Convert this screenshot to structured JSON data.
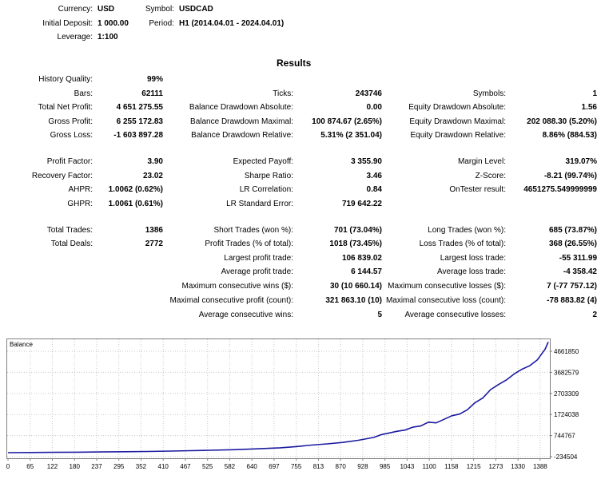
{
  "header": {
    "currency_label": "Currency:",
    "currency_value": "USD",
    "deposit_label": "Initial Deposit:",
    "deposit_value": "1 000.00",
    "leverage_label": "Leverage:",
    "leverage_value": "1:100",
    "symbol_label": "Symbol:",
    "symbol_value": "USDCAD",
    "period_label": "Period:",
    "period_value": "H1 (2014.04.01 - 2024.04.01)"
  },
  "results_title": "Results",
  "col1": {
    "history_quality_label": "History Quality:",
    "history_quality_value": "99%",
    "bars_label": "Bars:",
    "bars_value": "62111",
    "total_net_profit_label": "Total Net Profit:",
    "total_net_profit_value": "4 651 275.55",
    "gross_profit_label": "Gross Profit:",
    "gross_profit_value": "6 255 172.83",
    "gross_loss_label": "Gross Loss:",
    "gross_loss_value": "-1 603 897.28",
    "profit_factor_label": "Profit Factor:",
    "profit_factor_value": "3.90",
    "recovery_factor_label": "Recovery Factor:",
    "recovery_factor_value": "23.02",
    "ahpr_label": "AHPR:",
    "ahpr_value": "1.0062 (0.62%)",
    "ghpr_label": "GHPR:",
    "ghpr_value": "1.0061 (0.61%)",
    "total_trades_label": "Total Trades:",
    "total_trades_value": "1386",
    "total_deals_label": "Total Deals:",
    "total_deals_value": "2772"
  },
  "col2": {
    "ticks_label": "Ticks:",
    "ticks_value": "243746",
    "balance_dd_abs_label": "Balance Drawdown Absolute:",
    "balance_dd_abs_value": "0.00",
    "balance_dd_max_label": "Balance Drawdown Maximal:",
    "balance_dd_max_value": "100 874.67 (2.65%)",
    "balance_dd_rel_label": "Balance Drawdown Relative:",
    "balance_dd_rel_value": "5.31% (2 351.04)",
    "expected_payoff_label": "Expected Payoff:",
    "expected_payoff_value": "3 355.90",
    "sharpe_label": "Sharpe Ratio:",
    "sharpe_value": "3.46",
    "lr_corr_label": "LR Correlation:",
    "lr_corr_value": "0.84",
    "lr_err_label": "LR Standard Error:",
    "lr_err_value": "719 642.22",
    "short_trades_label": "Short Trades (won %):",
    "short_trades_value": "701 (73.04%)",
    "profit_trades_label": "Profit Trades (% of total):",
    "profit_trades_value": "1018 (73.45%)",
    "largest_profit_label": "Largest profit trade:",
    "largest_profit_value": "106 839.02",
    "avg_profit_label": "Average profit trade:",
    "avg_profit_value": "6 144.57",
    "max_consec_wins_label": "Maximum consecutive wins ($):",
    "max_consec_wins_value": "30 (10 660.14)",
    "maximal_consec_profit_label": "Maximal consecutive profit (count):",
    "maximal_consec_profit_value": "321 863.10 (10)",
    "avg_consec_wins_label": "Average consecutive wins:",
    "avg_consec_wins_value": "5"
  },
  "col3": {
    "symbols_label": "Symbols:",
    "symbols_value": "1",
    "equity_dd_abs_label": "Equity Drawdown Absolute:",
    "equity_dd_abs_value": "1.56",
    "equity_dd_max_label": "Equity Drawdown Maximal:",
    "equity_dd_max_value": "202 088.30 (5.20%)",
    "equity_dd_rel_label": "Equity Drawdown Relative:",
    "equity_dd_rel_value": "8.86% (884.53)",
    "margin_level_label": "Margin Level:",
    "margin_level_value": "319.07%",
    "zscore_label": "Z-Score:",
    "zscore_value": "-8.21 (99.74%)",
    "ontester_label": "OnTester result:",
    "ontester_value": "4651275.549999999",
    "long_trades_label": "Long Trades (won %):",
    "long_trades_value": "685 (73.87%)",
    "loss_trades_label": "Loss Trades (% of total):",
    "loss_trades_value": "368 (26.55%)",
    "largest_loss_label": "Largest loss trade:",
    "largest_loss_value": "-55 311.99",
    "avg_loss_label": "Average loss trade:",
    "avg_loss_value": "-4 358.42",
    "max_consec_losses_label": "Maximum consecutive losses ($):",
    "max_consec_losses_value": "7 (-77 757.12)",
    "maximal_consec_loss_label": "Maximal consecutive loss (count):",
    "maximal_consec_loss_value": "-78 883.82 (4)",
    "avg_consec_losses_label": "Average consecutive losses:",
    "avg_consec_losses_value": "2"
  },
  "chart_data": {
    "type": "line",
    "title": "Balance",
    "line_color": "#1a1aa0",
    "grid": true,
    "x_ticks": [
      "0",
      "65",
      "122",
      "180",
      "237",
      "295",
      "352",
      "410",
      "467",
      "525",
      "582",
      "640",
      "697",
      "755",
      "813",
      "870",
      "928",
      "985",
      "1043",
      "1100",
      "1158",
      "1215",
      "1273",
      "1330",
      "1388"
    ],
    "y_ticks": [
      "4661850",
      "3682579",
      "2703309",
      "1724038",
      "744767",
      "-234504"
    ],
    "ylim": [
      -234504,
      4661850
    ],
    "xlim": [
      0,
      1388
    ],
    "series": [
      {
        "name": "Balance",
        "x": [
          0,
          60,
          120,
          180,
          240,
          300,
          360,
          420,
          470,
          520,
          580,
          640,
          700,
          740,
          780,
          820,
          860,
          900,
          940,
          960,
          980,
          1000,
          1020,
          1040,
          1060,
          1080,
          1100,
          1120,
          1140,
          1160,
          1180,
          1200,
          1220,
          1240,
          1260,
          1280,
          1300,
          1320,
          1340,
          1360,
          1380,
          1388
        ],
        "y": [
          1000,
          8000,
          14000,
          22000,
          30000,
          40000,
          52000,
          68000,
          85000,
          100000,
          125000,
          160000,
          205000,
          255000,
          320000,
          370000,
          430000,
          520000,
          640000,
          760000,
          830000,
          900000,
          950000,
          1070000,
          1120000,
          1280000,
          1250000,
          1400000,
          1550000,
          1620000,
          1800000,
          2100000,
          2300000,
          2650000,
          2860000,
          3050000,
          3300000,
          3500000,
          3650000,
          3900000,
          4350000,
          4651275
        ]
      }
    ]
  }
}
